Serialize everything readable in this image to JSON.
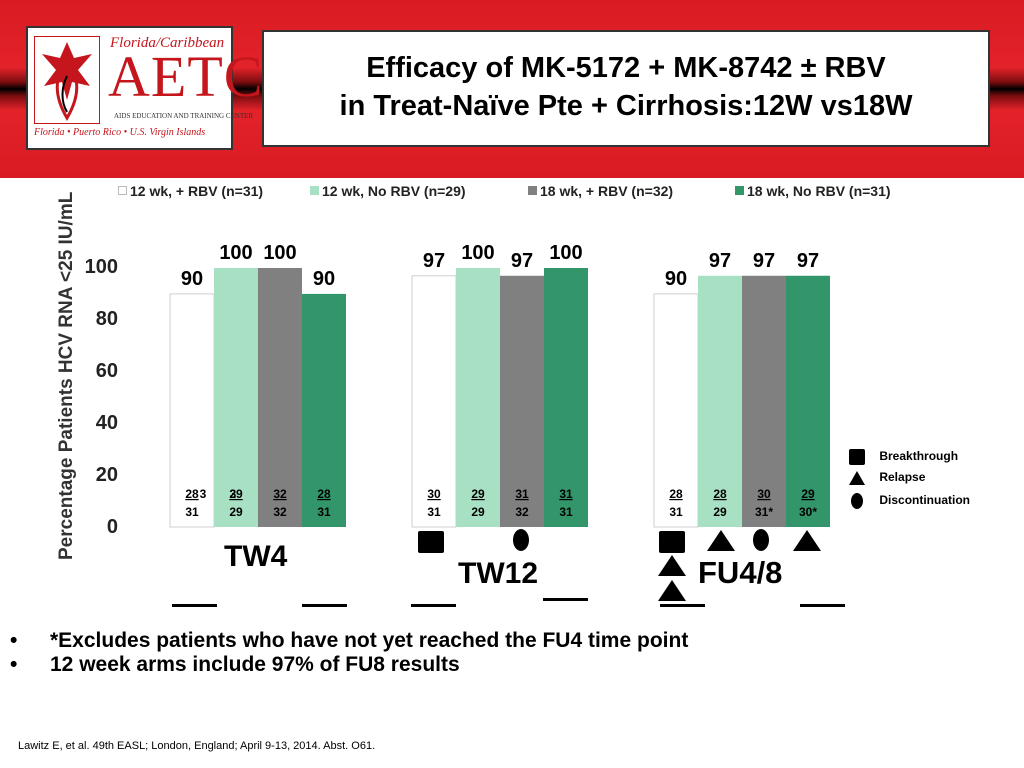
{
  "logo": {
    "top": "Florida/Caribbean",
    "main": "AETC",
    "sub": "AIDS EDUCATION AND TRAINING CENTER",
    "bottom": "Florida • Puerto Rico • U.S. Virgin Islands"
  },
  "title": {
    "line1": "Efficacy of MK-5172 + MK-8742 ± RBV",
    "line2": "in Treat-Naïve Pte + Cirrhosis:12W vs18W"
  },
  "colors": {
    "series1": "#ffffff",
    "series2": "#a8e0c4",
    "series3": "#808080",
    "series4": "#33966a"
  },
  "chart_data": {
    "type": "bar",
    "ylabel": "Percentage Patients HCV RNA <25 IU/mL",
    "ylim": [
      0,
      100
    ],
    "yticks": [
      "0",
      "20",
      "40",
      "60",
      "80",
      "100"
    ],
    "categories": [
      "TW4",
      "TW12",
      "FU4/8"
    ],
    "series": [
      {
        "name": "12 wk, + RBV (n=31)",
        "values": [
          90,
          97,
          90
        ],
        "labels": [
          "90",
          "97",
          "90"
        ],
        "num": [
          "28",
          "30",
          "28"
        ],
        "den": [
          "31",
          "31",
          "31"
        ]
      },
      {
        "name": "12 wk, No RBV (n=29)",
        "values": [
          100,
          100,
          97
        ],
        "labels": [
          "100",
          "100",
          "97"
        ],
        "num": [
          "29",
          "29",
          "28"
        ],
        "den": [
          "29",
          "29",
          "29"
        ]
      },
      {
        "name": "18 wk, + RBV (n=32)",
        "values": [
          100,
          97,
          97
        ],
        "labels": [
          "100",
          "97",
          "97"
        ],
        "num": [
          "32",
          "31",
          "30"
        ],
        "den": [
          "32",
          "32",
          "31*"
        ]
      },
      {
        "name": "18 wk, No RBV (n=31)",
        "values": [
          90,
          100,
          97
        ],
        "labels": [
          "90",
          "100",
          "97"
        ],
        "num": [
          "28",
          "31",
          "29"
        ],
        "den": [
          "31",
          "31",
          "30*"
        ]
      }
    ],
    "stray_num_text": "3",
    "stray_den_text": "1",
    "symbol_legend": [
      {
        "icon": "square",
        "label": "Breakthrough"
      },
      {
        "icon": "triangle",
        "label": "Relapse"
      },
      {
        "icon": "circle",
        "label": "Discontinuation"
      }
    ]
  },
  "footnotes": [
    "*Excludes patients who have not yet reached the FU4 time point",
    "12 week arms include 97% of FU8 results"
  ],
  "bullet_char": "•",
  "citation": "Lawitz E, et al. 49th EASL; London, England; April 9-13, 2014. Abst. O61."
}
